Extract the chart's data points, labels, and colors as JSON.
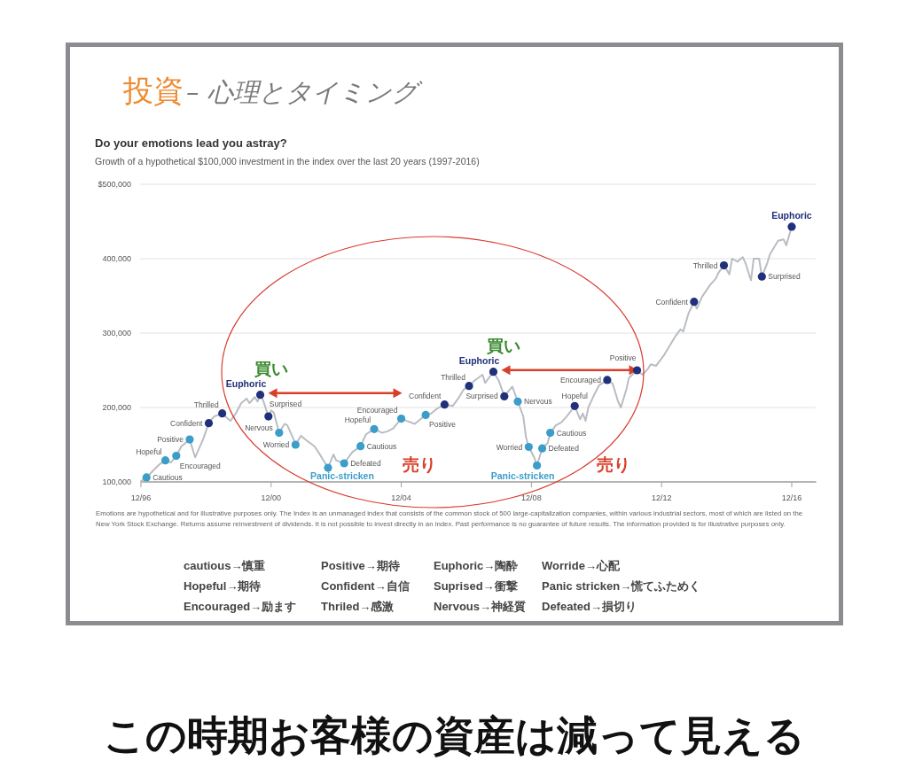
{
  "chart_data": {
    "type": "line",
    "title": "Do your emotions lead you astray?",
    "subtitle": "Growth of a hypothetical $100,000 investment in the index over the last 20 years (1997-2016)",
    "xlim": [
      "1996-12",
      "2017-09"
    ],
    "xticks": [
      {
        "value": "1996-12",
        "label": "12/96"
      },
      {
        "value": "2000-12",
        "label": "12/00"
      },
      {
        "value": "2004-12",
        "label": "12/04"
      },
      {
        "value": "2008-12",
        "label": "12/08"
      },
      {
        "value": "2012-12",
        "label": "12/12"
      },
      {
        "value": "2016-12",
        "label": "12/16"
      }
    ],
    "ylim": [
      100000,
      500000
    ],
    "yticks": [
      {
        "value": 500000,
        "label": "$500,000"
      },
      {
        "value": 400000,
        "label": "400,000"
      },
      {
        "value": 300000,
        "label": "300,000"
      },
      {
        "value": 200000,
        "label": "200,000"
      },
      {
        "value": 100000,
        "label": "100,000"
      }
    ],
    "grid": "y",
    "series": [
      {
        "type": "line",
        "color": "#b9bdc3",
        "line_style": "solid",
        "x": [
          "1996-12",
          "1997-02",
          "1997-05",
          "1997-07",
          "1997-09",
          "1997-11",
          "1998-01",
          "1998-03",
          "1998-06",
          "1998-08",
          "1998-11",
          "1999-01",
          "1999-03",
          "1999-06",
          "1999-09",
          "1999-11",
          "2000-01",
          "2000-03",
          "2000-04",
          "2000-06",
          "2000-07",
          "2000-08",
          "2000-09",
          "2000-11",
          "2000-12",
          "2001-01",
          "2001-03",
          "2001-05",
          "2001-06",
          "2001-08",
          "2001-09",
          "2001-11",
          "2002-01",
          "2002-04",
          "2002-06",
          "2002-07",
          "2002-09",
          "2002-11",
          "2002-12",
          "2003-03",
          "2003-06",
          "2003-09",
          "2003-11",
          "2004-02",
          "2004-05",
          "2004-07",
          "2004-09",
          "2004-12",
          "2005-02",
          "2005-05",
          "2005-07",
          "2005-09",
          "2005-11",
          "2006-01",
          "2006-04",
          "2006-07",
          "2006-09",
          "2006-11",
          "2007-01",
          "2007-03",
          "2007-06",
          "2007-07",
          "2007-10",
          "2007-12",
          "2008-02",
          "2008-04",
          "2008-05",
          "2008-07",
          "2008-09",
          "2008-10",
          "2008-11",
          "2009-01",
          "2009-02",
          "2009-04",
          "2009-06",
          "2009-07",
          "2009-09",
          "2009-11",
          "2010-01",
          "2010-04",
          "2010-06",
          "2010-07",
          "2010-08",
          "2010-09",
          "2010-11",
          "2011-01",
          "2011-04",
          "2011-06",
          "2011-08",
          "2011-09",
          "2011-11",
          "2011-12",
          "2012-03",
          "2012-05",
          "2012-07",
          "2012-08",
          "2012-10",
          "2013-01",
          "2013-05",
          "2013-07",
          "2013-08",
          "2013-10",
          "2013-12",
          "2014-01",
          "2014-03",
          "2014-06",
          "2014-08",
          "2014-09",
          "2014-11",
          "2015-01",
          "2015-02",
          "2015-04",
          "2015-06",
          "2015-07",
          "2015-09",
          "2015-10",
          "2015-12",
          "2016-01",
          "2016-03",
          "2016-04",
          "2016-07",
          "2016-09",
          "2016-10",
          "2016-12"
        ],
        "values": [
          101000,
          106000,
          117000,
          124000,
          129000,
          126000,
          135000,
          148000,
          157000,
          133000,
          158000,
          179000,
          188000,
          192000,
          182000,
          192000,
          206000,
          212000,
          206000,
          214000,
          208000,
          217000,
          210000,
          188000,
          196000,
          193000,
          166000,
          178000,
          176000,
          160000,
          150000,
          162000,
          156000,
          148000,
          137000,
          131000,
          119000,
          137000,
          129000,
          125000,
          140000,
          148000,
          164000,
          171000,
          166000,
          168000,
          172000,
          185000,
          182000,
          178000,
          184000,
          190000,
          192000,
          198000,
          204000,
          202000,
          212000,
          224000,
          229000,
          236000,
          244000,
          233000,
          248000,
          236000,
          215000,
          224000,
          228000,
          208000,
          188000,
          160000,
          147000,
          133000,
          122000,
          145000,
          152000,
          166000,
          176000,
          180000,
          188000,
          202000,
          184000,
          192000,
          182000,
          200000,
          216000,
          230000,
          237000,
          232000,
          208000,
          200000,
          224000,
          240000,
          250000,
          244000,
          252000,
          258000,
          256000,
          271000,
          295000,
          305000,
          302000,
          327000,
          342000,
          333000,
          349000,
          365000,
          373000,
          381000,
          391000,
          379000,
          400000,
          396000,
          402000,
          394000,
          371000,
          400000,
          400000,
          376000,
          394000,
          406000,
          424000,
          426000,
          418000,
          443000
        ]
      },
      {
        "type": "scatter",
        "color": "#3b9dc9",
        "marker": "circle",
        "x": [
          "1997-02",
          "1997-09",
          "1998-01",
          "1998-06",
          "2001-03",
          "2001-09",
          "2002-09",
          "2003-03",
          "2003-09",
          "2004-02",
          "2004-12",
          "2005-09",
          "2008-07",
          "2008-11",
          "2009-02",
          "2009-04",
          "2009-07"
        ],
        "values": [
          106000,
          129000,
          135000,
          157000,
          166000,
          150000,
          119000,
          125000,
          148000,
          171000,
          185000,
          190000,
          208000,
          147000,
          122000,
          145000,
          166000
        ]
      },
      {
        "type": "scatter",
        "color": "#20307a",
        "marker": "circle",
        "x": [
          "1999-01",
          "1999-06",
          "2000-08",
          "2000-11",
          "2006-04",
          "2007-01",
          "2007-10",
          "2008-02",
          "2010-04",
          "2011-04",
          "2012-03",
          "2013-12",
          "2014-11",
          "2016-01",
          "2016-12"
        ],
        "values": [
          179000,
          192000,
          217000,
          188000,
          204000,
          229000,
          248000,
          215000,
          202000,
          237000,
          250000,
          342000,
          391000,
          376000,
          443000
        ]
      }
    ],
    "annotations": [
      "投資",
      "– 心理とタイミング",
      {
        "text": "Cautious",
        "x": "1997-02",
        "y": 106000
      },
      {
        "text": "Hopeful",
        "x": "1997-09",
        "y": 129000
      },
      {
        "text": "Encouraged",
        "x": "1998-01",
        "y": 135000
      },
      {
        "text": "Positive",
        "x": "1998-06",
        "y": 157000
      },
      {
        "text": "Confident",
        "x": "1999-01",
        "y": 179000
      },
      {
        "text": "Thrilled",
        "x": "1999-06",
        "y": 192000
      },
      {
        "text": "Euphoric",
        "x": "2000-08",
        "y": 217000
      },
      {
        "text": "Surprised",
        "x": "2000-11",
        "y": 188000
      },
      {
        "text": "Nervous",
        "x": "2001-03",
        "y": 166000
      },
      {
        "text": "Worried",
        "x": "2001-09",
        "y": 150000
      },
      {
        "text": "Panic-stricken",
        "x": "2002-09",
        "y": 119000
      },
      {
        "text": "Defeated",
        "x": "2003-03",
        "y": 125000
      },
      {
        "text": "Cautious",
        "x": "2003-09",
        "y": 148000
      },
      {
        "text": "Hopeful",
        "x": "2004-02",
        "y": 171000
      },
      {
        "text": "Encouraged",
        "x": "2004-12",
        "y": 185000
      },
      {
        "text": "Positive",
        "x": "2005-09",
        "y": 190000
      },
      {
        "text": "Confident",
        "x": "2006-04",
        "y": 204000
      },
      {
        "text": "Thrilled",
        "x": "2007-01",
        "y": 229000
      },
      {
        "text": "Euphoric",
        "x": "2007-10",
        "y": 248000
      },
      {
        "text": "Surprised",
        "x": "2008-02",
        "y": 215000
      },
      {
        "text": "Nervous",
        "x": "2008-07",
        "y": 208000
      },
      {
        "text": "Worried",
        "x": "2008-11",
        "y": 147000
      },
      {
        "text": "Panic-stricken",
        "x": "2009-02",
        "y": 122000
      },
      {
        "text": "Defeated",
        "x": "2009-04",
        "y": 145000
      },
      {
        "text": "Cautious",
        "x": "2009-07",
        "y": 166000
      },
      {
        "text": "Hopeful",
        "x": "2010-04",
        "y": 202000
      },
      {
        "text": "Encouraged",
        "x": "2011-04",
        "y": 237000
      },
      {
        "text": "Positive",
        "x": "2012-03",
        "y": 250000
      },
      {
        "text": "Confident",
        "x": "2013-12",
        "y": 342000
      },
      {
        "text": "Thrilled",
        "x": "2014-11",
        "y": 391000
      },
      {
        "text": "Surprised",
        "x": "2016-01",
        "y": 376000
      },
      {
        "text": "Euphoric",
        "x": "2016-12",
        "y": 443000
      },
      {
        "text": "買い",
        "x": "2000-08",
        "y": 217000
      },
      {
        "text": "買い",
        "x": "2007-10",
        "y": 248000
      },
      "売り",
      "売り",
      "Emotions are hypothetical and for illustrative purposes only. The Index is an unmanaged index that consists of the common stock of 500 large-capitalization companies, within various industrial sectors, most of which are listed on the New York Stock Exchange. Returns assume reinvestment of dividends. It is not possible to invest directly in an index. Past performance is no guarantee of future results. The information provided is for illustrative purposes only.",
      "cautious→慎重",
      "Positive→期待",
      "Euphoric→陶酔",
      "Worride→心配",
      "Hopeful→期待",
      "Confident→自信",
      "Suprised→衝撃",
      "Panic stricken→慌てふためく",
      "Encouraged→励ます",
      "Thriled→感激",
      "Nervous→神経質",
      "Defeated→損切り",
      "この時期お客様の資産は減って見える"
    ]
  }
}
